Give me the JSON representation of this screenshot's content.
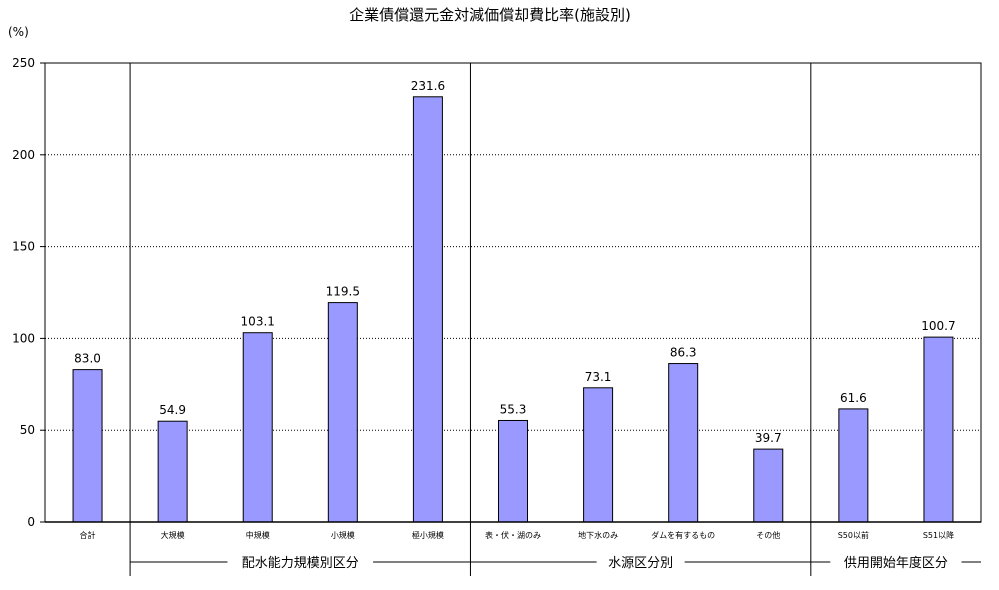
{
  "chart_data": {
    "type": "bar",
    "title": "企業債償還元金対減価償却費比率(施設別)",
    "ylabel": "(%)",
    "ylim": [
      0,
      250
    ],
    "yticks": [
      0,
      50,
      100,
      150,
      200,
      250
    ],
    "grid": true,
    "categories": [
      "合計",
      "大規模",
      "中規模",
      "小規模",
      "極小規模",
      "表・伏・湖のみ",
      "地下水のみ",
      "ダムを有するもの",
      "その他",
      "S50以前",
      "S51以降"
    ],
    "values": [
      83.0,
      54.9,
      103.1,
      119.5,
      231.6,
      55.3,
      73.1,
      86.3,
      39.7,
      61.6,
      100.7
    ],
    "value_labels": [
      "83.0",
      "54.9",
      "103.1",
      "119.5",
      "231.6",
      "55.3",
      "73.1",
      "86.3",
      "39.7",
      "61.6",
      "100.7"
    ],
    "groups": [
      {
        "label": "配水能力規模別区分",
        "start": 1,
        "end": 4
      },
      {
        "label": "水源区分別",
        "start": 5,
        "end": 8
      },
      {
        "label": "供用開始年度区分",
        "start": 9,
        "end": 10
      }
    ],
    "colors": {
      "bar_fill": "#9999ff",
      "bar_stroke": "#000000",
      "grid": "#000000"
    }
  }
}
